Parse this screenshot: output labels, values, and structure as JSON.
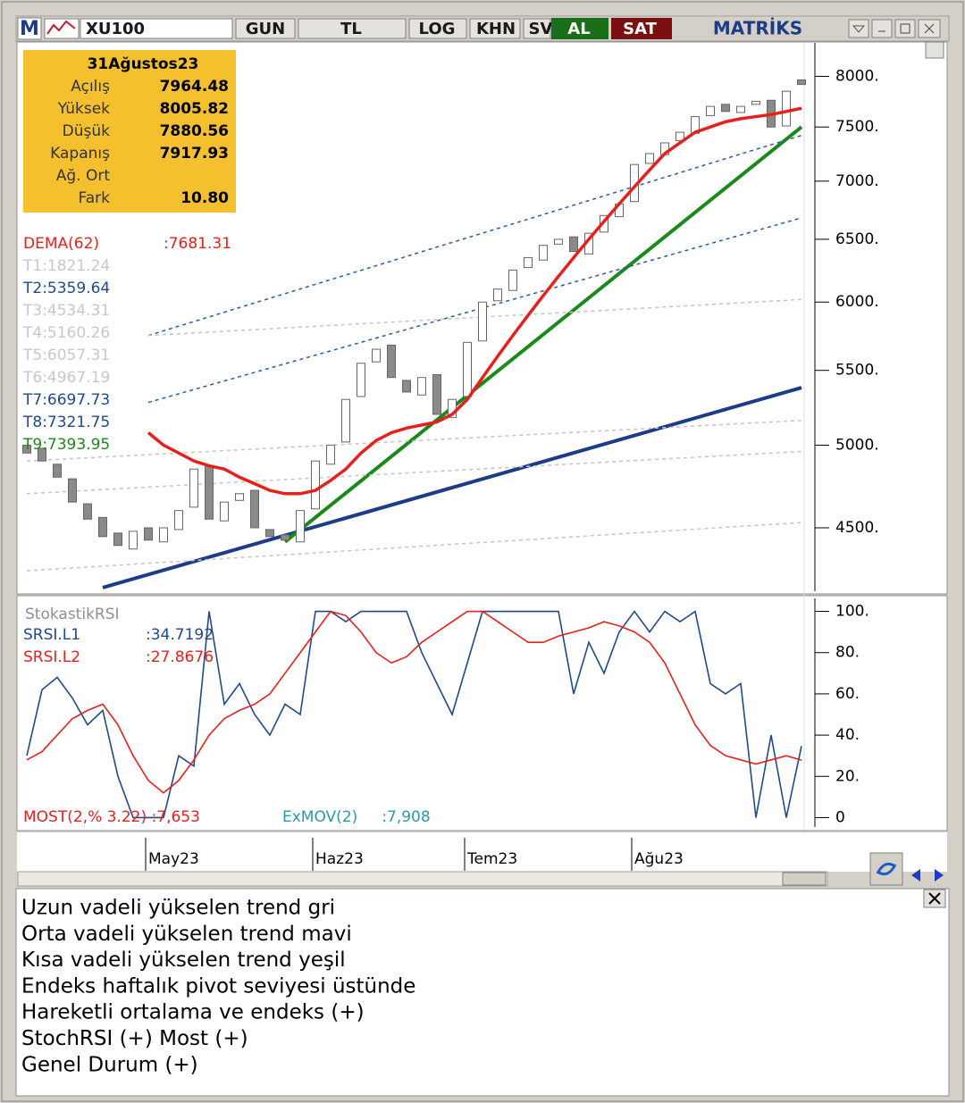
{
  "toolbar": {
    "logo": "M",
    "symbol": "XU100",
    "buttons": [
      "GUN",
      "TL",
      "LOG",
      "KHN",
      "SV"
    ],
    "buy": "AL",
    "sell": "SAT",
    "brand": "MATRİKS"
  },
  "info_box": {
    "date": "31Ağustos23",
    "rows": [
      [
        "Açılış",
        "7964.48"
      ],
      [
        "Yüksek",
        "8005.82"
      ],
      [
        "Düşük",
        "7880.56"
      ],
      [
        "Kapanış",
        "7917.93"
      ],
      [
        "Ağ. Ort",
        ""
      ],
      [
        "Fark",
        "10.80"
      ]
    ]
  },
  "chart_data": [
    {
      "type": "candlestick",
      "log": true,
      "categories": [
        null,
        null,
        null,
        null,
        null,
        null,
        null,
        null,
        "May23",
        null,
        null,
        null,
        null,
        null,
        null,
        null,
        null,
        null,
        null,
        "Haz23",
        null,
        null,
        null,
        null,
        null,
        null,
        null,
        null,
        null,
        "Tem23",
        null,
        null,
        null,
        null,
        null,
        null,
        null,
        null,
        null,
        null,
        "Ağu23",
        null,
        null,
        null,
        null,
        null,
        null,
        null,
        null,
        null,
        null,
        null
      ],
      "open": [
        5000,
        4980,
        4880,
        4790,
        4640,
        4560,
        4470,
        4380,
        4500,
        4420,
        4490,
        4620,
        4870,
        4540,
        4660,
        4720,
        4490,
        4460,
        4420,
        4610,
        4880,
        5020,
        5320,
        5560,
        5680,
        5430,
        5330,
        5470,
        5180,
        5320,
        5710,
        6010,
        6090,
        6270,
        6330,
        6460,
        6520,
        6380,
        6560,
        6690,
        6820,
        7160,
        7240,
        7370,
        7440,
        7610,
        7720,
        7640,
        7720,
        7760,
        7510,
        7964.48
      ],
      "close": [
        4950,
        4900,
        4800,
        4650,
        4550,
        4450,
        4400,
        4480,
        4430,
        4500,
        4600,
        4850,
        4550,
        4650,
        4700,
        4500,
        4450,
        4430,
        4600,
        4900,
        5000,
        5300,
        5550,
        5650,
        5450,
        5350,
        5450,
        5200,
        5300,
        5700,
        6000,
        6100,
        6250,
        6350,
        6450,
        6500,
        6400,
        6550,
        6700,
        6800,
        7150,
        7250,
        7350,
        7450,
        7600,
        7700,
        7650,
        7700,
        7750,
        7500,
        7850,
        7917.93
      ],
      "up_color": "#ffffff",
      "down_color": "#8a8a8a",
      "ylim": [
        4160,
        8330
      ],
      "yticks": [
        {
          "value": 4500,
          "label": "4500."
        },
        {
          "value": 5000,
          "label": "5000."
        },
        {
          "value": 5500,
          "label": "5500."
        },
        {
          "value": 6000,
          "label": "6000."
        },
        {
          "value": 6500,
          "label": "6500."
        },
        {
          "value": 7000,
          "label": "7000."
        },
        {
          "value": 7500,
          "label": "7500."
        },
        {
          "value": 8000,
          "label": "8000."
        }
      ],
      "series": [
        {
          "name": "DEMA(62)",
          "value_label": ":7681.31",
          "color": "#e8201c",
          "values": [
            null,
            null,
            null,
            null,
            null,
            null,
            null,
            null,
            5080,
            5000,
            4950,
            4900,
            4870,
            4850,
            4800,
            4760,
            4720,
            4700,
            4700,
            4720,
            4780,
            4850,
            4950,
            5030,
            5080,
            5110,
            5130,
            5150,
            5200,
            5300,
            5450,
            5600,
            5750,
            5900,
            6050,
            6200,
            6350,
            6500,
            6650,
            6800,
            6950,
            7100,
            7250,
            7350,
            7450,
            7500,
            7550,
            7580,
            7600,
            7620,
            7650,
            7681.31
          ]
        }
      ],
      "trend_lines": [
        {
          "color": "#1c3c88",
          "dash": false,
          "x": [
            5,
            51
          ],
          "values": [
            4170,
            5380
          ]
        },
        {
          "color": "#1a8a1a",
          "dash": false,
          "x": [
            17,
            51
          ],
          "values": [
            4420,
            7500
          ]
        },
        {
          "color": "#2a5aa8",
          "dash": true,
          "x": [
            8,
            51
          ],
          "values": [
            5750,
            7420
          ]
        },
        {
          "color": "#2a5aa8",
          "dash": true,
          "x": [
            8,
            51
          ],
          "values": [
            5280,
            6680
          ]
        },
        {
          "color": "#c4c4c4",
          "dash": true,
          "x": [
            0,
            51
          ],
          "values": [
            4260,
            4530
          ]
        },
        {
          "color": "#c4c4c4",
          "dash": true,
          "x": [
            0,
            51
          ],
          "values": [
            4700,
            4960
          ]
        },
        {
          "color": "#c4c4c4",
          "dash": true,
          "x": [
            0,
            51
          ],
          "values": [
            4900,
            5160
          ]
        },
        {
          "color": "#c4c4c4",
          "dash": true,
          "x": [
            8,
            51
          ],
          "values": [
            5750,
            6020
          ]
        }
      ],
      "legend": [
        {
          "text": "T1:1821.24",
          "color": "#c8c8c8"
        },
        {
          "text": "T2:5359.64",
          "color": "#1f4a8a"
        },
        {
          "text": "T3:4534.31",
          "color": "#c8c8c8"
        },
        {
          "text": "T4:5160.26",
          "color": "#c8c8c8"
        },
        {
          "text": "T5:6057.31",
          "color": "#c8c8c8"
        },
        {
          "text": "T6:4967.19",
          "color": "#c8c8c8"
        },
        {
          "text": "T7:6697.73",
          "color": "#1f4a8a"
        },
        {
          "text": "T8:7321.75",
          "color": "#1f4a8a"
        },
        {
          "text": "T9:7393.95",
          "color": "#1a8a1a"
        }
      ]
    },
    {
      "type": "line",
      "title": "StokastikRSI",
      "ylim": [
        -5,
        105
      ],
      "yticks": [
        {
          "value": 100,
          "label": "100."
        },
        {
          "value": 80,
          "label": "80."
        },
        {
          "value": 60,
          "label": "60."
        },
        {
          "value": 40,
          "label": "40."
        },
        {
          "value": 20,
          "label": "20."
        },
        0
      ],
      "series": [
        {
          "name": "SRSI.L1",
          "value_label": ":34.7192",
          "color": "#1f4a8a",
          "values": [
            30,
            62,
            68,
            58,
            45,
            52,
            20,
            0,
            0,
            0,
            30,
            25,
            100,
            55,
            65,
            50,
            40,
            55,
            50,
            100,
            100,
            95,
            100,
            100,
            100,
            100,
            80,
            65,
            50,
            75,
            100,
            100,
            100,
            100,
            100,
            100,
            60,
            85,
            70,
            90,
            100,
            90,
            100,
            95,
            100,
            65,
            60,
            65,
            0,
            40,
            0,
            34.7192
          ]
        },
        {
          "name": "SRSI.L2",
          "value_label": ":27.8676",
          "color": "#e8201c",
          "values": [
            28,
            32,
            40,
            48,
            52,
            55,
            45,
            30,
            18,
            12,
            18,
            28,
            40,
            48,
            52,
            55,
            60,
            70,
            80,
            90,
            100,
            98,
            90,
            80,
            75,
            78,
            85,
            90,
            95,
            100,
            100,
            95,
            90,
            85,
            85,
            88,
            90,
            92,
            95,
            93,
            90,
            85,
            75,
            60,
            45,
            35,
            30,
            28,
            26,
            28,
            30,
            27.8676
          ]
        }
      ],
      "annotations": [
        {
          "text": "MOST(2,% 3.22) :7,653",
          "color": "#e8201c"
        },
        {
          "text": "ExMOV(2)     :7,908",
          "color": "#2a9aa8"
        }
      ]
    }
  ],
  "notes": [
    "Uzun vadeli yükselen trend gri",
    "Orta vadeli yükselen trend mavi",
    "Kısa vadeli yükselen trend yeşil",
    "Endeks haftalık pivot seviyesi üstünde",
    "Hareketli ortalama ve endeks (+)",
    "StochRSI (+) Most (+)",
    "Genel Durum (+)"
  ]
}
